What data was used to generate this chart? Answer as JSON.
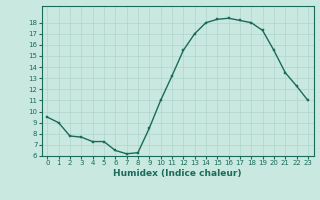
{
  "x": [
    0,
    1,
    2,
    3,
    4,
    5,
    6,
    7,
    8,
    9,
    10,
    11,
    12,
    13,
    14,
    15,
    16,
    17,
    18,
    19,
    20,
    21,
    22,
    23
  ],
  "y": [
    9.5,
    9.0,
    7.8,
    7.7,
    7.3,
    7.3,
    6.5,
    6.2,
    6.3,
    8.5,
    11.0,
    13.2,
    15.5,
    17.0,
    18.0,
    18.3,
    18.4,
    18.2,
    18.0,
    17.3,
    15.5,
    13.5,
    12.3,
    11.0
  ],
  "line_color": "#1a6b5a",
  "marker_color": "#1a6b5a",
  "bg_color": "#c8e8e0",
  "grid_color": "#b0d4cc",
  "xlabel": "Humidex (Indice chaleur)",
  "xlim": [
    -0.5,
    23.5
  ],
  "ylim": [
    6,
    19
  ],
  "yticks": [
    6,
    7,
    8,
    9,
    10,
    11,
    12,
    13,
    14,
    15,
    16,
    17,
    18
  ],
  "xticks": [
    0,
    1,
    2,
    3,
    4,
    5,
    6,
    7,
    8,
    9,
    10,
    11,
    12,
    13,
    14,
    15,
    16,
    17,
    18,
    19,
    20,
    21,
    22,
    23
  ],
  "tick_label_fontsize": 5.0,
  "xlabel_fontsize": 6.5,
  "marker_size": 2.0,
  "line_width": 1.0
}
